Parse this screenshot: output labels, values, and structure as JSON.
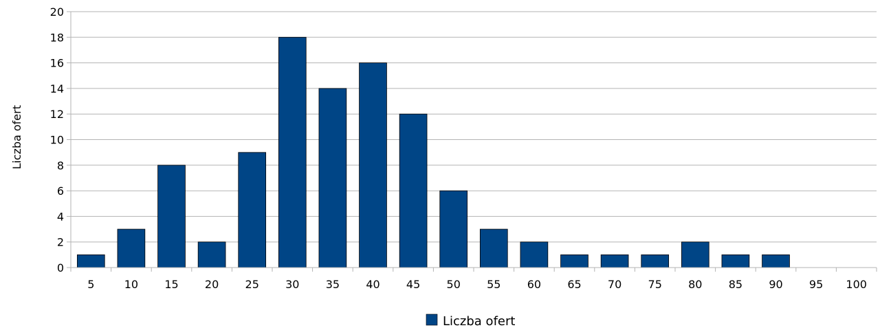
{
  "chart_data": {
    "type": "bar",
    "title": "",
    "xlabel": "",
    "ylabel": "Liczba ofert",
    "categories": [
      "5",
      "10",
      "15",
      "20",
      "25",
      "30",
      "35",
      "40",
      "45",
      "50",
      "55",
      "60",
      "65",
      "70",
      "75",
      "80",
      "85",
      "90",
      "95",
      "100"
    ],
    "series": [
      {
        "name": "Liczba ofert",
        "color": "#004586",
        "values": [
          1,
          3,
          8,
          2,
          9,
          18,
          14,
          16,
          12,
          6,
          3,
          2,
          1,
          1,
          1,
          2,
          1,
          1,
          0,
          0
        ]
      }
    ],
    "ylim": [
      0,
      20
    ],
    "yticks": [
      0,
      2,
      4,
      6,
      8,
      10,
      12,
      14,
      16,
      18,
      20
    ],
    "grid": true,
    "legend": "bottom"
  }
}
